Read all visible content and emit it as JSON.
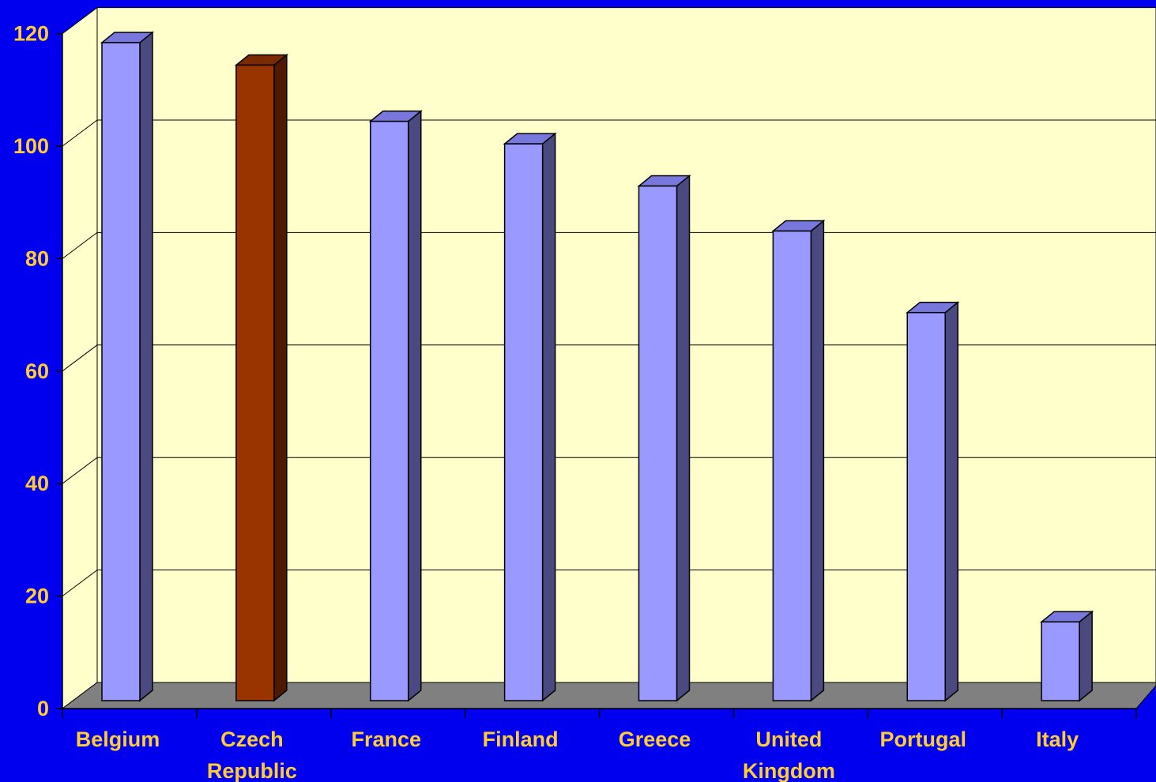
{
  "chart_data": {
    "type": "bar",
    "style": "3d-column",
    "categories": [
      "Belgium",
      "Czech Republic",
      "France",
      "Finland",
      "Greece",
      "United Kingdom",
      "Portugal",
      "Italy"
    ],
    "category_lines": [
      [
        "Belgium"
      ],
      [
        "Czech",
        "Republic"
      ],
      [
        "France"
      ],
      [
        "Finland"
      ],
      [
        "Greece"
      ],
      [
        "United",
        "Kingdom"
      ],
      [
        "Portugal"
      ],
      [
        "Italy"
      ]
    ],
    "values": [
      117,
      113,
      103,
      99,
      91.5,
      83.5,
      69,
      14
    ],
    "highlight_index": 1,
    "ylim": [
      0,
      120
    ],
    "yticks": [
      0,
      20,
      40,
      60,
      80,
      100,
      120
    ],
    "grid": true,
    "title": "",
    "xlabel": "",
    "ylabel": "",
    "colors": {
      "background": "#0000ee",
      "plot_wall": "#ffffcc",
      "floor": "#808080",
      "bar_front": "#9999ff",
      "bar_side": "#4a4a80",
      "bar_top": "#7777dd",
      "highlight_front": "#993300",
      "highlight_side": "#4d1a00",
      "highlight_top": "#7a2900",
      "label": "#ffcc33"
    }
  }
}
